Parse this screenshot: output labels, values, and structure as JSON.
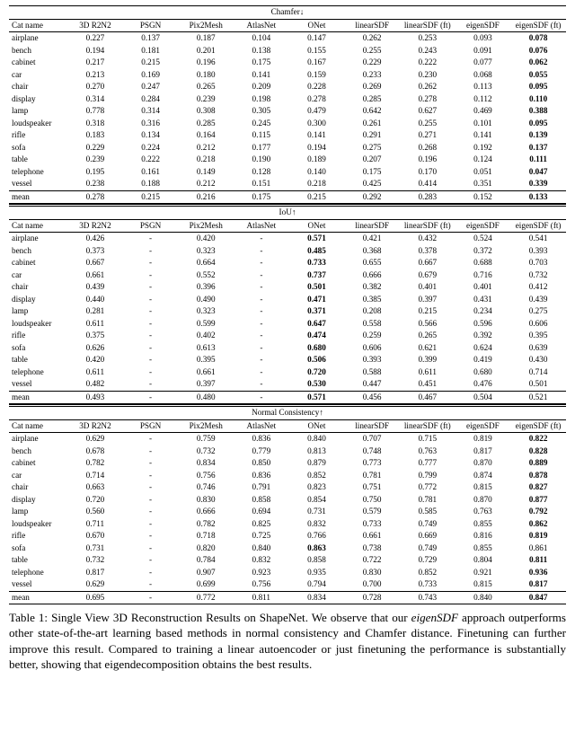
{
  "columns": [
    "Cat name",
    "3D R2N2",
    "PSGN",
    "Pix2Mesh",
    "AtlasNet",
    "ONet",
    "linearSDF",
    "linearSDF (ft)",
    "eigenSDF",
    "eigenSDF (ft)"
  ],
  "sections": [
    {
      "title": "Chamfer↓",
      "bold_col": 9,
      "rows": [
        [
          "airplane",
          "0.227",
          "0.137",
          "0.187",
          "0.104",
          "0.147",
          "0.262",
          "0.253",
          "0.093",
          "0.078"
        ],
        [
          "bench",
          "0.194",
          "0.181",
          "0.201",
          "0.138",
          "0.155",
          "0.255",
          "0.243",
          "0.091",
          "0.076"
        ],
        [
          "cabinet",
          "0.217",
          "0.215",
          "0.196",
          "0.175",
          "0.167",
          "0.229",
          "0.222",
          "0.077",
          "0.062"
        ],
        [
          "car",
          "0.213",
          "0.169",
          "0.180",
          "0.141",
          "0.159",
          "0.233",
          "0.230",
          "0.068",
          "0.055"
        ],
        [
          "chair",
          "0.270",
          "0.247",
          "0.265",
          "0.209",
          "0.228",
          "0.269",
          "0.262",
          "0.113",
          "0.095"
        ],
        [
          "display",
          "0.314",
          "0.284",
          "0.239",
          "0.198",
          "0.278",
          "0.285",
          "0.278",
          "0.112",
          "0.110"
        ],
        [
          "lamp",
          "0.778",
          "0.314",
          "0.308",
          "0.305",
          "0.479",
          "0.642",
          "0.627",
          "0.469",
          "0.388"
        ],
        [
          "loudspeaker",
          "0.318",
          "0.316",
          "0.285",
          "0.245",
          "0.300",
          "0.261",
          "0.255",
          "0.101",
          "0.095"
        ],
        [
          "rifle",
          "0.183",
          "0.134",
          "0.164",
          "0.115",
          "0.141",
          "0.291",
          "0.271",
          "0.141",
          "0.139"
        ],
        [
          "sofa",
          "0.229",
          "0.224",
          "0.212",
          "0.177",
          "0.194",
          "0.275",
          "0.268",
          "0.192",
          "0.137"
        ],
        [
          "table",
          "0.239",
          "0.222",
          "0.218",
          "0.190",
          "0.189",
          "0.207",
          "0.196",
          "0.124",
          "0.111"
        ],
        [
          "telephone",
          "0.195",
          "0.161",
          "0.149",
          "0.128",
          "0.140",
          "0.175",
          "0.170",
          "0.051",
          "0.047"
        ],
        [
          "vessel",
          "0.238",
          "0.188",
          "0.212",
          "0.151",
          "0.218",
          "0.425",
          "0.414",
          "0.351",
          "0.339"
        ]
      ],
      "mean": [
        "mean",
        "0.278",
        "0.215",
        "0.216",
        "0.175",
        "0.215",
        "0.292",
        "0.283",
        "0.152",
        "0.133"
      ]
    },
    {
      "title": "IoU↑",
      "bold_col": 5,
      "rows": [
        [
          "airplane",
          "0.426",
          "-",
          "0.420",
          "-",
          "0.571",
          "0.421",
          "0.432",
          "0.524",
          "0.541"
        ],
        [
          "bench",
          "0.373",
          "-",
          "0.323",
          "-",
          "0.485",
          "0.368",
          "0.378",
          "0.372",
          "0.393"
        ],
        [
          "cabinet",
          "0.667",
          "-",
          "0.664",
          "-",
          "0.733",
          "0.655",
          "0.667",
          "0.688",
          "0.703"
        ],
        [
          "car",
          "0.661",
          "-",
          "0.552",
          "-",
          "0.737",
          "0.666",
          "0.679",
          "0.716",
          "0.732"
        ],
        [
          "chair",
          "0.439",
          "-",
          "0.396",
          "-",
          "0.501",
          "0.382",
          "0.401",
          "0.401",
          "0.412"
        ],
        [
          "display",
          "0.440",
          "-",
          "0.490",
          "-",
          "0.471",
          "0.385",
          "0.397",
          "0.431",
          "0.439"
        ],
        [
          "lamp",
          "0.281",
          "-",
          "0.323",
          "-",
          "0.371",
          "0.208",
          "0.215",
          "0.234",
          "0.275"
        ],
        [
          "loudspeaker",
          "0.611",
          "-",
          "0.599",
          "-",
          "0.647",
          "0.558",
          "0.566",
          "0.596",
          "0.606"
        ],
        [
          "rifle",
          "0.375",
          "-",
          "0.402",
          "-",
          "0.474",
          "0.259",
          "0.265",
          "0.392",
          "0.395"
        ],
        [
          "sofa",
          "0.626",
          "-",
          "0.613",
          "-",
          "0.680",
          "0.606",
          "0.621",
          "0.624",
          "0.639"
        ],
        [
          "table",
          "0.420",
          "-",
          "0.395",
          "-",
          "0.506",
          "0.393",
          "0.399",
          "0.419",
          "0.430"
        ],
        [
          "telephone",
          "0.611",
          "-",
          "0.661",
          "-",
          "0.720",
          "0.588",
          "0.611",
          "0.680",
          "0.714"
        ],
        [
          "vessel",
          "0.482",
          "-",
          "0.397",
          "-",
          "0.530",
          "0.447",
          "0.451",
          "0.476",
          "0.501"
        ]
      ],
      "mean": [
        "mean",
        "0.493",
        "-",
        "0.480",
        "-",
        "0.571",
        "0.456",
        "0.467",
        "0.504",
        "0.521"
      ]
    },
    {
      "title": "Normal Consistency↑",
      "bold_col": 9,
      "bold_override": {
        "9": 5
      },
      "rows": [
        [
          "airplane",
          "0.629",
          "-",
          "0.759",
          "0.836",
          "0.840",
          "0.707",
          "0.715",
          "0.819",
          "0.822"
        ],
        [
          "bench",
          "0.678",
          "-",
          "0.732",
          "0.779",
          "0.813",
          "0.748",
          "0.763",
          "0.817",
          "0.828"
        ],
        [
          "cabinet",
          "0.782",
          "-",
          "0.834",
          "0.850",
          "0.879",
          "0.773",
          "0.777",
          "0.870",
          "0.889"
        ],
        [
          "car",
          "0.714",
          "-",
          "0.756",
          "0.836",
          "0.852",
          "0.781",
          "0.799",
          "0.874",
          "0.878"
        ],
        [
          "chair",
          "0.663",
          "-",
          "0.746",
          "0.791",
          "0.823",
          "0.751",
          "0.772",
          "0.815",
          "0.827"
        ],
        [
          "display",
          "0.720",
          "-",
          "0.830",
          "0.858",
          "0.854",
          "0.750",
          "0.781",
          "0.870",
          "0.877"
        ],
        [
          "lamp",
          "0.560",
          "-",
          "0.666",
          "0.694",
          "0.731",
          "0.579",
          "0.585",
          "0.763",
          "0.792"
        ],
        [
          "loudspeaker",
          "0.711",
          "-",
          "0.782",
          "0.825",
          "0.832",
          "0.733",
          "0.749",
          "0.855",
          "0.862"
        ],
        [
          "rifle",
          "0.670",
          "-",
          "0.718",
          "0.725",
          "0.766",
          "0.661",
          "0.669",
          "0.816",
          "0.819"
        ],
        [
          "sofa",
          "0.731",
          "-",
          "0.820",
          "0.840",
          "0.863",
          "0.738",
          "0.749",
          "0.855",
          "0.861"
        ],
        [
          "table",
          "0.732",
          "-",
          "0.784",
          "0.832",
          "0.858",
          "0.722",
          "0.729",
          "0.804",
          "0.811"
        ],
        [
          "telephone",
          "0.817",
          "-",
          "0.907",
          "0.923",
          "0.935",
          "0.830",
          "0.852",
          "0.921",
          "0.936"
        ],
        [
          "vessel",
          "0.629",
          "-",
          "0.699",
          "0.756",
          "0.794",
          "0.700",
          "0.733",
          "0.815",
          "0.817"
        ]
      ],
      "mean": [
        "mean",
        "0.695",
        "-",
        "0.772",
        "0.811",
        "0.834",
        "0.728",
        "0.743",
        "0.840",
        "0.847"
      ]
    }
  ],
  "caption_label": "Table 1:",
  "caption_parts": {
    "a": "  Single View 3D Reconstruction Results on ShapeNet.  We observe that our ",
    "b": "eigenSDF",
    "c": " approach outperforms other state-of-the-art learning based methods in normal consistency and Chamfer distance.  Finetuning can further improve this result.  Compared to training a linear autoencoder or just finetuning the performance is substantially better, showing that eigendecomposition obtains the best results."
  }
}
